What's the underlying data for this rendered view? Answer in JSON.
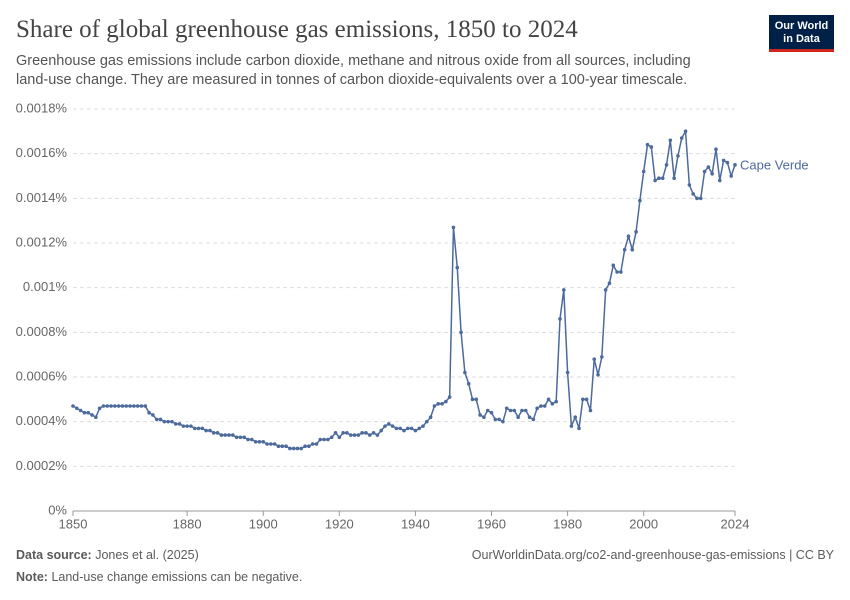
{
  "chart_data": {
    "type": "line",
    "title": "Share of global greenhouse gas emissions, 1850 to 2024",
    "subtitle": "Greenhouse gas emissions include carbon dioxide, methane and nitrous oxide from all sources, including land-use change. They are measured in tonnes of carbon dioxide-equivalents over a 100-year timescale.",
    "logo": [
      "Our World",
      "in Data"
    ],
    "source_label": "Data source:",
    "source": "Jones et al. (2025)",
    "url": "OurWorldinData.org/co2-and-greenhouse-gas-emissions | CC BY",
    "note_label": "Note:",
    "note": "Land-use change emissions can be negative.",
    "x": [
      1850,
      1851,
      1852,
      1853,
      1854,
      1855,
      1856,
      1857,
      1858,
      1859,
      1860,
      1861,
      1862,
      1863,
      1864,
      1865,
      1866,
      1867,
      1868,
      1869,
      1870,
      1871,
      1872,
      1873,
      1874,
      1875,
      1876,
      1877,
      1878,
      1879,
      1880,
      1881,
      1882,
      1883,
      1884,
      1885,
      1886,
      1887,
      1888,
      1889,
      1890,
      1891,
      1892,
      1893,
      1894,
      1895,
      1896,
      1897,
      1898,
      1899,
      1900,
      1901,
      1902,
      1903,
      1904,
      1905,
      1906,
      1907,
      1908,
      1909,
      1910,
      1911,
      1912,
      1913,
      1914,
      1915,
      1916,
      1917,
      1918,
      1919,
      1920,
      1921,
      1922,
      1923,
      1924,
      1925,
      1926,
      1927,
      1928,
      1929,
      1930,
      1931,
      1932,
      1933,
      1934,
      1935,
      1936,
      1937,
      1938,
      1939,
      1940,
      1941,
      1942,
      1943,
      1944,
      1945,
      1946,
      1947,
      1948,
      1949,
      1950,
      1951,
      1952,
      1953,
      1954,
      1955,
      1956,
      1957,
      1958,
      1959,
      1960,
      1961,
      1962,
      1963,
      1964,
      1965,
      1966,
      1967,
      1968,
      1969,
      1970,
      1971,
      1972,
      1973,
      1974,
      1975,
      1976,
      1977,
      1978,
      1979,
      1980,
      1981,
      1982,
      1983,
      1984,
      1985,
      1986,
      1987,
      1988,
      1989,
      1990,
      1991,
      1992,
      1993,
      1994,
      1995,
      1996,
      1997,
      1998,
      1999,
      2000,
      2001,
      2002,
      2003,
      2004,
      2005,
      2006,
      2007,
      2008,
      2009,
      2010,
      2011,
      2012,
      2013,
      2014,
      2015,
      2016,
      2017,
      2018,
      2019,
      2020,
      2021,
      2022,
      2023,
      2024
    ],
    "series": [
      {
        "name": "Cape Verde",
        "color": "#4c6a9c",
        "values": [
          0.00047,
          0.00046,
          0.00045,
          0.00044,
          0.00044,
          0.00043,
          0.00042,
          0.00046,
          0.00047,
          0.00047,
          0.00047,
          0.00047,
          0.00047,
          0.00047,
          0.00047,
          0.00047,
          0.00047,
          0.00047,
          0.00047,
          0.00047,
          0.00044,
          0.00043,
          0.00041,
          0.00041,
          0.0004,
          0.0004,
          0.0004,
          0.00039,
          0.00039,
          0.00038,
          0.00038,
          0.00038,
          0.00037,
          0.00037,
          0.00037,
          0.00036,
          0.00036,
          0.00035,
          0.00035,
          0.00034,
          0.00034,
          0.00034,
          0.00034,
          0.00033,
          0.00033,
          0.00033,
          0.00032,
          0.00032,
          0.00031,
          0.00031,
          0.00031,
          0.0003,
          0.0003,
          0.0003,
          0.00029,
          0.00029,
          0.00029,
          0.00028,
          0.00028,
          0.00028,
          0.00028,
          0.00029,
          0.00029,
          0.0003,
          0.0003,
          0.00032,
          0.00032,
          0.00032,
          0.00033,
          0.00035,
          0.00033,
          0.00035,
          0.00035,
          0.00034,
          0.00034,
          0.00034,
          0.00035,
          0.00035,
          0.00034,
          0.00035,
          0.00034,
          0.00036,
          0.00038,
          0.00039,
          0.00038,
          0.00037,
          0.00037,
          0.00036,
          0.00037,
          0.00037,
          0.00036,
          0.00037,
          0.00038,
          0.0004,
          0.00042,
          0.00047,
          0.00048,
          0.00048,
          0.00049,
          0.00051,
          0.00127,
          0.00109,
          0.0008,
          0.00062,
          0.00057,
          0.0005,
          0.0005,
          0.00043,
          0.00042,
          0.00045,
          0.00044,
          0.00041,
          0.00041,
          0.0004,
          0.00046,
          0.00045,
          0.00045,
          0.00042,
          0.00045,
          0.00045,
          0.00042,
          0.00041,
          0.00046,
          0.00047,
          0.00047,
          0.0005,
          0.00048,
          0.00049,
          0.00086,
          0.00099,
          0.00062,
          0.00038,
          0.00042,
          0.00037,
          0.0005,
          0.0005,
          0.00045,
          0.00068,
          0.00061,
          0.00069,
          0.00099,
          0.00102,
          0.0011,
          0.00107,
          0.00107,
          0.00117,
          0.00123,
          0.00117,
          0.00125,
          0.00139,
          0.00152,
          0.00164,
          0.00163,
          0.00148,
          0.00149,
          0.00149,
          0.00155,
          0.00166,
          0.00149,
          0.00159,
          0.00167,
          0.0017,
          0.00146,
          0.00142,
          0.0014,
          0.0014,
          0.00152,
          0.00154,
          0.00151,
          0.00162,
          0.00148,
          0.00157,
          0.00156,
          0.0015,
          0.00155
        ]
      }
    ],
    "xlim": [
      1850,
      2024
    ],
    "xticks": [
      1850,
      1880,
      1900,
      1920,
      1940,
      1960,
      1980,
      2000,
      2024
    ],
    "ylim": [
      0,
      0.0018
    ],
    "yticks": [
      {
        "value": 0,
        "label": "0%"
      },
      {
        "value": 0.0002,
        "label": "0.0002%"
      },
      {
        "value": 0.0004,
        "label": "0.0004%"
      },
      {
        "value": 0.0006,
        "label": "0.0006%"
      },
      {
        "value": 0.0008,
        "label": "0.0008%"
      },
      {
        "value": 0.001,
        "label": "0.001%"
      },
      {
        "value": 0.0012,
        "label": "0.0012%"
      },
      {
        "value": 0.0014,
        "label": "0.0014%"
      },
      {
        "value": 0.0016,
        "label": "0.0016%"
      },
      {
        "value": 0.0018,
        "label": "0.0018%"
      }
    ],
    "grid": true
  }
}
